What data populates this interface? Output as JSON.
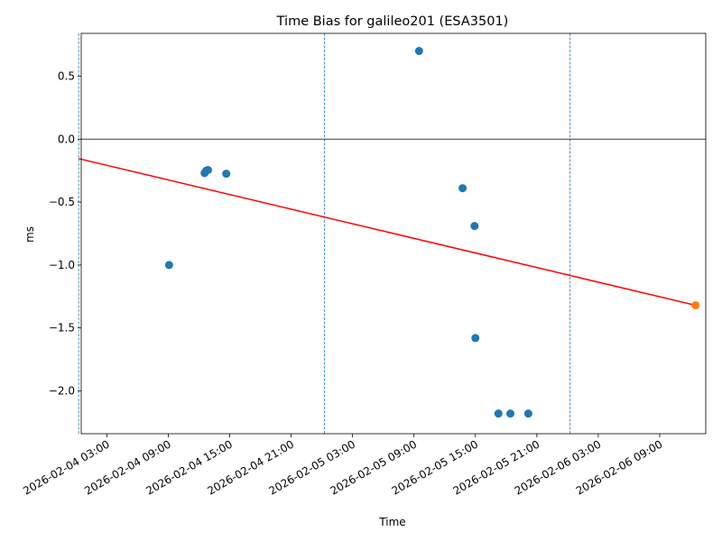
{
  "chart_data": {
    "type": "scatter",
    "title": "Time Bias for galileo201 (ESA3501)",
    "xlabel": "Time",
    "ylabel": "ms",
    "x_type": "datetime",
    "xlim": [
      "2026-02-04 00:30",
      "2026-02-06 13:30"
    ],
    "ylim": [
      -2.34,
      0.84
    ],
    "x_ticks": [
      "2026-02-04 03:00",
      "2026-02-04 09:00",
      "2026-02-04 15:00",
      "2026-02-04 21:00",
      "2026-02-05 03:00",
      "2026-02-05 09:00",
      "2026-02-05 15:00",
      "2026-02-05 21:00",
      "2026-02-06 03:00",
      "2026-02-06 09:00"
    ],
    "x_tick_labels": [
      "2026-02-04 03:00",
      "2026-02-04 09:00",
      "2026-02-04 15:00",
      "2026-02-04 21:00",
      "2026-02-05 03:00",
      "2026-02-05 09:00",
      "2026-02-05 15:00",
      "2026-02-05 21:00",
      "2026-02-06 03:00",
      "2026-02-06 09:00"
    ],
    "y_ticks": [
      0.5,
      0.0,
      -0.5,
      -1.0,
      -1.5,
      -2.0
    ],
    "y_tick_labels": [
      "0.5",
      "0.0",
      "−0.5",
      "−1.0",
      "−1.5",
      "−2.0"
    ],
    "grid": false,
    "hline_y": 0.0,
    "vlines": [
      "2026-02-04 00:15",
      "2026-02-05 00:15",
      "2026-02-06 00:15"
    ],
    "series": [
      {
        "type": "scatter",
        "color": "#1f77b4",
        "points": [
          {
            "x": "2026-02-04 09:05",
            "y": -1.0
          },
          {
            "x": "2026-02-04 12:33",
            "y": -0.27
          },
          {
            "x": "2026-02-04 12:43",
            "y": -0.25
          },
          {
            "x": "2026-02-04 12:53",
            "y": -0.245
          },
          {
            "x": "2026-02-04 14:40",
            "y": -0.275
          },
          {
            "x": "2026-02-05 09:30",
            "y": 0.7
          },
          {
            "x": "2026-02-05 13:45",
            "y": -0.39
          },
          {
            "x": "2026-02-05 14:55",
            "y": -0.69
          },
          {
            "x": "2026-02-05 15:00",
            "y": -1.58
          },
          {
            "x": "2026-02-05 17:15",
            "y": -2.18
          },
          {
            "x": "2026-02-05 18:25",
            "y": -2.18
          },
          {
            "x": "2026-02-05 20:10",
            "y": -2.18
          }
        ]
      },
      {
        "type": "line",
        "color": "#ff0000",
        "points": [
          {
            "x": "2026-02-04 00:15",
            "y": -0.155
          },
          {
            "x": "2026-02-06 12:30",
            "y": -1.32
          }
        ]
      },
      {
        "type": "scatter",
        "color": "#ff7f0e",
        "points": [
          {
            "x": "2026-02-06 12:30",
            "y": -1.32
          }
        ]
      }
    ]
  }
}
